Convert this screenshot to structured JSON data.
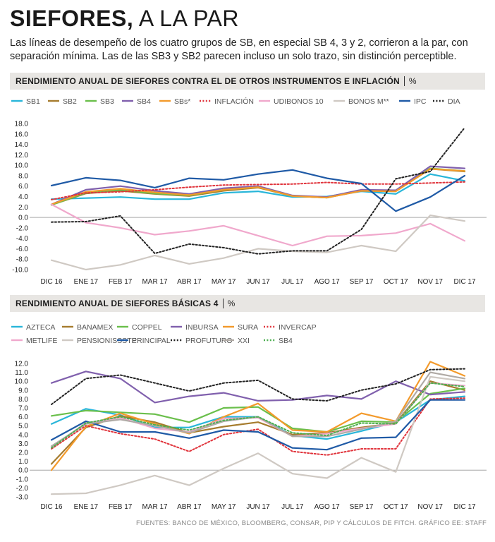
{
  "header": {
    "title_bold": "SIEFORES,",
    "title_light": "A LA PAR",
    "subtitle": "Las líneas de desempeño de los cuatro grupos de SB, en especial SB 4, 3 y 2, corrieron a la par, con separación mínima. Las de las SB3 y SB2 parecen incluso un solo trazo, sin distinción perceptible."
  },
  "footer": "FUENTES: BANCO DE MÉXICO, BLOOMBERG, CONSAR, PIP Y CÁLCULOS DE FITCH.  GRÁFICO EE: STAFF",
  "chart_data": [
    {
      "type": "line",
      "title": "RENDIMIENTO ANUAL DE SIEFORES CONTRA EL DE OTROS INSTRUMENTOS E INFLACIÓN",
      "unit": "%",
      "categories": [
        "DIC 16",
        "ENE 17",
        "FEB 17",
        "MAR 17",
        "ABR 17",
        "MAY 17",
        "JUN 17",
        "JUL 17",
        "AGO 17",
        "SEP 17",
        "OCT 17",
        "NOV 17",
        "DIC 17"
      ],
      "ylim": [
        -10,
        18
      ],
      "yticks": [
        "18.0",
        "16.0",
        "14.0",
        "12.0",
        "10.0",
        "8.0",
        "6.0",
        "4.0",
        "2.0",
        "0.0",
        "-2.0",
        "-4.0",
        "-6.0",
        "-8.0",
        "-10.0"
      ],
      "series": [
        {
          "name": "SB1",
          "color": "#29b6d9",
          "dash": "solid",
          "values": [
            3.5,
            3.7,
            3.9,
            3.5,
            3.5,
            4.7,
            5.0,
            3.9,
            4.0,
            5.0,
            4.5,
            8.3,
            7.0
          ]
        },
        {
          "name": "SB2",
          "color": "#a67c2e",
          "dash": "solid",
          "values": [
            2.4,
            4.6,
            5.1,
            4.5,
            4.1,
            5.1,
            5.7,
            4.1,
            3.8,
            5.1,
            5.0,
            9.3,
            8.8
          ]
        },
        {
          "name": "SB3",
          "color": "#6abf4b",
          "dash": "solid",
          "values": [
            2.4,
            4.7,
            5.3,
            4.6,
            4.2,
            5.3,
            5.8,
            4.1,
            3.8,
            5.2,
            5.1,
            9.4,
            8.9
          ]
        },
        {
          "name": "SB4",
          "color": "#8060ad",
          "dash": "solid",
          "values": [
            2.5,
            5.3,
            6.0,
            5.1,
            4.5,
            5.6,
            6.0,
            4.2,
            3.9,
            5.3,
            5.2,
            9.8,
            9.4
          ]
        },
        {
          "name": "SBs*",
          "color": "#f39a2b",
          "dash": "solid",
          "values": [
            2.5,
            4.9,
            5.5,
            4.8,
            4.3,
            5.3,
            5.8,
            4.1,
            3.8,
            5.1,
            5.0,
            9.3,
            8.9
          ]
        },
        {
          "name": "INFLACIÓN",
          "color": "#e0333b",
          "dash": "dot",
          "values": [
            3.4,
            4.7,
            4.9,
            5.3,
            5.8,
            6.2,
            6.3,
            6.4,
            6.7,
            6.4,
            6.4,
            6.6,
            6.8
          ]
        },
        {
          "name": "UDIBONOS 10",
          "color": "#f0a8cc",
          "dash": "solid",
          "values": [
            2.5,
            -1.0,
            -2.0,
            -3.3,
            -2.6,
            -1.6,
            -3.5,
            -5.4,
            -3.6,
            -3.5,
            -3.0,
            -1.2,
            -4.5
          ]
        },
        {
          "name": "BONOS M**",
          "color": "#cfc9c3",
          "dash": "solid",
          "values": [
            -8.2,
            -10.0,
            -9.1,
            -7.3,
            -8.9,
            -7.8,
            -6.0,
            -6.5,
            -6.7,
            -5.4,
            -6.5,
            0.4,
            -0.7
          ]
        },
        {
          "name": "IPC",
          "color": "#1f5aa6",
          "dash": "solid",
          "values": [
            6.1,
            7.6,
            7.1,
            5.7,
            7.5,
            7.2,
            8.3,
            9.1,
            7.5,
            6.5,
            1.2,
            3.9,
            8.0
          ]
        },
        {
          "name": "DIA",
          "color": "#222222",
          "dash": "dot",
          "values": [
            -0.9,
            -0.8,
            0.3,
            -6.9,
            -5.1,
            -5.8,
            -7.0,
            -6.4,
            -6.4,
            -2.3,
            7.4,
            8.8,
            17.2
          ]
        }
      ]
    },
    {
      "type": "line",
      "title": "RENDIMIENTO ANUAL DE SIEFORES BÁSICAS 4",
      "unit": "%",
      "categories": [
        "DIC 16",
        "ENE 17",
        "FEB 17",
        "MAR 17",
        "ABR 17",
        "MAY 17",
        "JUN 17",
        "JUL 17",
        "AGO 17",
        "SEP 17",
        "OCT 17",
        "NOV 17",
        "DIC 17"
      ],
      "ylim": [
        -3,
        12
      ],
      "yticks": [
        "12.0",
        "11.0",
        "10.0",
        "9.0",
        "8.0",
        "7.0",
        "6.0",
        "5.0",
        "4.0",
        "3.0",
        "2.0",
        "1.0",
        "0.0",
        "-1.0",
        "-2.0",
        "-3.0"
      ],
      "series": [
        {
          "name": "AZTECA",
          "color": "#29b6d9",
          "dash": "solid",
          "values": [
            5.2,
            6.9,
            6.2,
            4.8,
            4.8,
            6.0,
            6.0,
            3.9,
            3.5,
            4.4,
            5.4,
            7.9,
            8.3
          ]
        },
        {
          "name": "BANAMEX",
          "color": "#a67c2e",
          "dash": "solid",
          "values": [
            0.7,
            4.8,
            6.1,
            5.4,
            4.2,
            4.9,
            5.4,
            4.0,
            4.2,
            4.8,
            5.3,
            10.0,
            9.0
          ]
        },
        {
          "name": "COPPEL",
          "color": "#6abf4b",
          "dash": "solid",
          "values": [
            6.1,
            6.7,
            6.5,
            6.3,
            5.4,
            7.0,
            7.1,
            4.7,
            4.3,
            5.5,
            5.4,
            8.6,
            9.2
          ]
        },
        {
          "name": "INBURSA",
          "color": "#8060ad",
          "dash": "solid",
          "values": [
            9.8,
            11.1,
            10.3,
            7.6,
            8.3,
            8.7,
            7.8,
            7.9,
            8.4,
            8.0,
            10.0,
            8.5,
            8.8
          ]
        },
        {
          "name": "SURA",
          "color": "#f39a2b",
          "dash": "solid",
          "values": [
            0.0,
            4.9,
            6.4,
            5.2,
            4.1,
            6.0,
            7.5,
            4.5,
            4.3,
            6.4,
            5.5,
            12.2,
            10.6
          ]
        },
        {
          "name": "INVERCAP",
          "color": "#e0333b",
          "dash": "dot",
          "values": [
            2.4,
            5.0,
            4.1,
            3.5,
            2.1,
            4.0,
            4.6,
            2.1,
            1.7,
            2.4,
            2.4,
            8.0,
            8.1
          ]
        },
        {
          "name": "METLIFE",
          "color": "#f0a8cc",
          "dash": "solid",
          "values": [
            2.6,
            5.3,
            5.9,
            4.7,
            4.3,
            5.8,
            5.9,
            3.8,
            4.1,
            4.7,
            5.2,
            9.8,
            9.5
          ]
        },
        {
          "name": "PENSIONISSSTE",
          "color": "#cfc9c3",
          "dash": "solid",
          "values": [
            -2.7,
            -2.6,
            -1.7,
            -0.6,
            -1.7,
            0.2,
            1.9,
            -0.4,
            -0.9,
            1.4,
            -0.2,
            10.5,
            10.0
          ]
        },
        {
          "name": "PRINCIPAL",
          "color": "#1f5aa6",
          "dash": "solid",
          "values": [
            3.4,
            5.5,
            4.3,
            4.3,
            3.6,
            4.5,
            4.3,
            2.5,
            2.3,
            3.6,
            3.7,
            7.9,
            7.9
          ]
        },
        {
          "name": "PROFUTURO",
          "color": "#222222",
          "dash": "dot",
          "values": [
            7.4,
            10.3,
            10.7,
            9.8,
            8.9,
            9.8,
            10.1,
            8.0,
            7.8,
            9.0,
            9.7,
            11.3,
            11.4
          ]
        },
        {
          "name": "XXI",
          "color": "#b0aaa5",
          "dash": "solid",
          "values": [
            2.7,
            5.2,
            5.7,
            5.0,
            4.2,
            5.5,
            6.0,
            3.8,
            3.8,
            4.6,
            5.5,
            11.0,
            10.3
          ]
        },
        {
          "name": "SB4",
          "color": "#4caf50",
          "dash": "dot",
          "values": [
            2.5,
            5.3,
            6.0,
            5.1,
            4.5,
            5.6,
            6.0,
            4.2,
            3.9,
            5.3,
            5.2,
            9.8,
            9.4
          ]
        }
      ]
    }
  ]
}
